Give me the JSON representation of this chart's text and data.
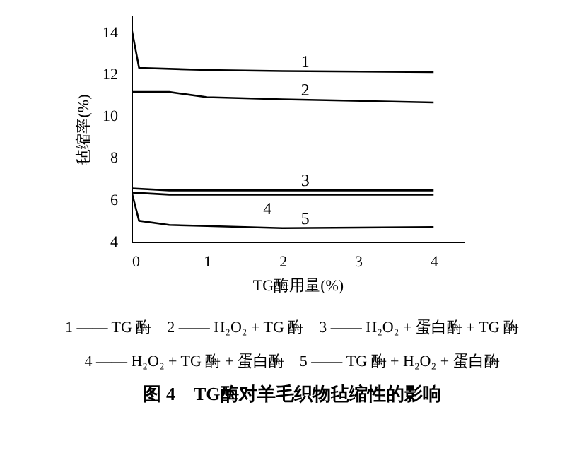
{
  "chart_data": {
    "type": "line",
    "title": "图 4　TG酶对羊毛织物毡缩性的影响",
    "xlabel": "TG酶用量(%)",
    "ylabel": "毡缩率(%)",
    "xlim": [
      0,
      4.4
    ],
    "xticks": [
      0,
      1,
      2,
      3,
      4
    ],
    "ylim": [
      4,
      14.8
    ],
    "yticks": [
      4,
      6,
      8,
      10,
      12,
      14
    ],
    "grid": false,
    "line_style": "solid",
    "series": [
      {
        "name": "1",
        "color": "#000000",
        "x": [
          0,
          0.1,
          1,
          2,
          4
        ],
        "values": [
          14.2,
          12.3,
          12.2,
          12.15,
          12.1
        ]
      },
      {
        "name": "2",
        "color": "#000000",
        "x": [
          0,
          0.5,
          1,
          2,
          4
        ],
        "values": [
          11.15,
          11.15,
          10.9,
          10.8,
          10.65
        ]
      },
      {
        "name": "3",
        "color": "#000000",
        "x": [
          0,
          0.5,
          1,
          2,
          4
        ],
        "values": [
          6.55,
          6.45,
          6.45,
          6.45,
          6.45
        ]
      },
      {
        "name": "4",
        "color": "#000000",
        "x": [
          0,
          0.5,
          1,
          2,
          4
        ],
        "values": [
          6.35,
          6.25,
          6.25,
          6.25,
          6.25
        ]
      },
      {
        "name": "5",
        "color": "#000000",
        "x": [
          0,
          0.1,
          0.5,
          1,
          2,
          4
        ],
        "values": [
          6.4,
          5.0,
          4.8,
          4.75,
          4.65,
          4.7
        ]
      }
    ],
    "annotations": [
      "1 —— TG 酶　2 —— H₂O₂ + TG 酶　3 —— H₂O₂ + 蛋白酶 + TG 酶",
      "4 —— H₂O₂ + TG 酶 + 蛋白酶　5 —— TG 酶 + H₂O₂ + 蛋白酶"
    ]
  }
}
